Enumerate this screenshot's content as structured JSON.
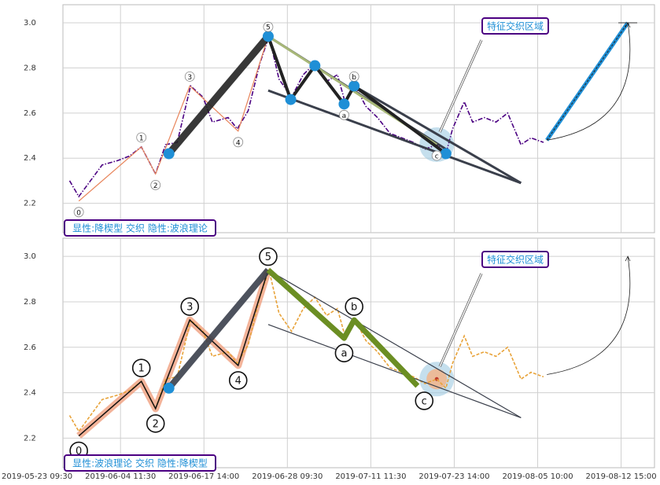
{
  "chart_data": [
    {
      "type": "line",
      "series": [
        {
          "color": "#4b0082",
          "x": [
            39,
            50,
            64,
            78,
            97,
            111,
            125,
            142,
            154,
            168,
            184,
            199,
            210,
            229,
            240,
            253,
            267,
            278,
            290,
            305,
            319,
            333,
            347,
            360,
            369,
            380,
            394,
            408,
            423,
            437,
            451,
            465,
            479,
            490,
            498,
            512,
            522,
            536,
            550,
            564,
            580,
            592,
            607
          ],
          "values": [
            2.3,
            2.23,
            2.3,
            2.37,
            2.39,
            2.41,
            2.45,
            2.33,
            2.46,
            2.47,
            2.72,
            2.67,
            2.56,
            2.58,
            2.53,
            2.61,
            2.82,
            2.94,
            2.75,
            2.67,
            2.77,
            2.82,
            2.74,
            2.77,
            2.65,
            2.73,
            2.63,
            2.58,
            2.51,
            2.49,
            2.47,
            2.44,
            2.46,
            2.42,
            2.53,
            2.65,
            2.56,
            2.58,
            2.56,
            2.6,
            2.46,
            2.49,
            2.47
          ]
        }
      ],
      "xlim": [
        31,
        740
      ],
      "ylim": [
        2.07,
        3.08
      ],
      "xticks": [
        100,
        200,
        300,
        400,
        500,
        600,
        700
      ],
      "yticks": [
        2.2,
        2.4,
        2.6,
        2.8,
        {
          "value": 3.0,
          "label": "3.0"
        }
      ],
      "grid": true,
      "impulse": {
        "color": "#e8845a",
        "x": [
          50,
          125,
          142,
          183,
          241,
          277
        ],
        "values": [
          2.21,
          2.45,
          2.33,
          2.72,
          2.52,
          2.94
        ],
        "labels": [
          "0",
          "1",
          "2",
          "3",
          "4",
          "5"
        ]
      },
      "breakout": {
        "color": "#222222",
        "x": [
          158,
          277
        ],
        "values": [
          2.42,
          2.94
        ]
      },
      "corrective": {
        "color": "#222222",
        "x": [
          277,
          304,
          333,
          368,
          380,
          490
        ],
        "values": [
          2.94,
          2.66,
          2.81,
          2.64,
          2.72,
          2.42
        ]
      },
      "dots": {
        "color": "#1f8fd6",
        "x": [
          158,
          277,
          304,
          333,
          368,
          380,
          490
        ],
        "values": [
          2.42,
          2.94,
          2.66,
          2.81,
          2.64,
          2.72,
          2.42
        ]
      },
      "abc": {
        "x": [
          368,
          380,
          479
        ],
        "values": [
          2.64,
          2.72,
          2.46
        ],
        "labels": [
          "a",
          "b",
          "c"
        ]
      },
      "trendlines": [
        {
          "color": "#3a3f4b",
          "x": [
            277,
            490
          ],
          "values": [
            2.94,
            2.44
          ]
        },
        {
          "color": "#3a3f4b",
          "x": [
            277,
            580
          ],
          "values": [
            2.7,
            2.29
          ]
        },
        {
          "color": "#3a3f4b",
          "x": [
            380,
            580
          ],
          "values": [
            2.72,
            2.29
          ]
        },
        {
          "color": "#a8b878",
          "x": [
            277,
            479
          ],
          "values": [
            2.94,
            2.46
          ]
        }
      ],
      "highlight": {
        "x": 479,
        "value": 2.46
      },
      "projection": {
        "color": "#1f8fd6",
        "x": [
          611,
          708
        ],
        "values": [
          2.48,
          3.0
        ]
      },
      "annotation": "特征交织区域",
      "pattern_label": "显性:降楔型 交织 隐性:波浪理论"
    },
    {
      "type": "line",
      "series": [
        {
          "color": "#e8a33a",
          "x": [
            39,
            50,
            64,
            78,
            97,
            111,
            125,
            142,
            154,
            168,
            184,
            199,
            210,
            229,
            240,
            253,
            267,
            278,
            290,
            305,
            319,
            333,
            347,
            360,
            369,
            380,
            394,
            408,
            423,
            437,
            451,
            465,
            479,
            490,
            498,
            512,
            522,
            536,
            550,
            564,
            580,
            592,
            607
          ],
          "values": [
            2.3,
            2.23,
            2.3,
            2.37,
            2.39,
            2.41,
            2.45,
            2.33,
            2.46,
            2.47,
            2.72,
            2.67,
            2.56,
            2.58,
            2.53,
            2.61,
            2.82,
            2.94,
            2.75,
            2.67,
            2.77,
            2.82,
            2.74,
            2.77,
            2.65,
            2.73,
            2.63,
            2.58,
            2.51,
            2.49,
            2.47,
            2.44,
            2.46,
            2.42,
            2.53,
            2.65,
            2.56,
            2.58,
            2.56,
            2.6,
            2.46,
            2.49,
            2.47
          ]
        }
      ],
      "xlim": [
        31,
        740
      ],
      "ylim": [
        2.07,
        3.08
      ],
      "xticks": [
        {
          "value": 0,
          "label": "2019-05-23 09:30"
        },
        {
          "value": 100,
          "label": "2019-06-04 11:30"
        },
        {
          "value": 200,
          "label": "2019-06-17 14:00"
        },
        {
          "value": 300,
          "label": "2019-06-28 09:30"
        },
        {
          "value": 400,
          "label": "2019-07-11 11:30"
        },
        {
          "value": 500,
          "label": "2019-07-23 14:00"
        },
        {
          "value": 600,
          "label": "2019-08-05 10:00"
        },
        {
          "value": 700,
          "label": "2019-08-12 15:00"
        }
      ],
      "yticks": [
        2.2,
        2.4,
        2.6,
        2.8,
        {
          "value": 3.0,
          "label": "3.0"
        }
      ],
      "grid": true,
      "impulse": {
        "color": "#f0a080",
        "x": [
          50,
          125,
          142,
          183,
          241,
          277
        ],
        "values": [
          2.21,
          2.45,
          2.33,
          2.72,
          2.52,
          2.94
        ],
        "labels": [
          "0",
          "1",
          "2",
          "3",
          "4",
          "5"
        ]
      },
      "breakout": {
        "color": "#3a3f4b",
        "x": [
          158,
          277
        ],
        "values": [
          2.42,
          2.94
        ]
      },
      "corrective": {
        "color": "#6b8e23",
        "x": [
          277,
          368,
          380,
          456
        ],
        "values": [
          2.94,
          2.64,
          2.72,
          2.43
        ]
      },
      "dots": {
        "color": "#1f8fd6",
        "x": [
          158
        ],
        "values": [
          2.42
        ]
      },
      "abc": {
        "x": [
          368,
          380,
          464
        ],
        "values": [
          2.64,
          2.72,
          2.43
        ],
        "labels": [
          "a",
          "b",
          "c"
        ]
      },
      "trendlines": [
        {
          "color": "#3a3f4b",
          "x": [
            277,
            580
          ],
          "values": [
            2.94,
            2.29
          ]
        },
        {
          "color": "#3a3f4b",
          "x": [
            277,
            580
          ],
          "values": [
            2.7,
            2.29
          ]
        }
      ],
      "highlight": {
        "x": 479,
        "value": 2.46
      },
      "projection": {
        "color": "#222222",
        "x": [
          611,
          708
        ],
        "values": [
          2.48,
          3.0
        ]
      },
      "annotation": "特征交织区域",
      "pattern_label": "显性:波浪理论 交织 隐性:降楔型"
    }
  ]
}
